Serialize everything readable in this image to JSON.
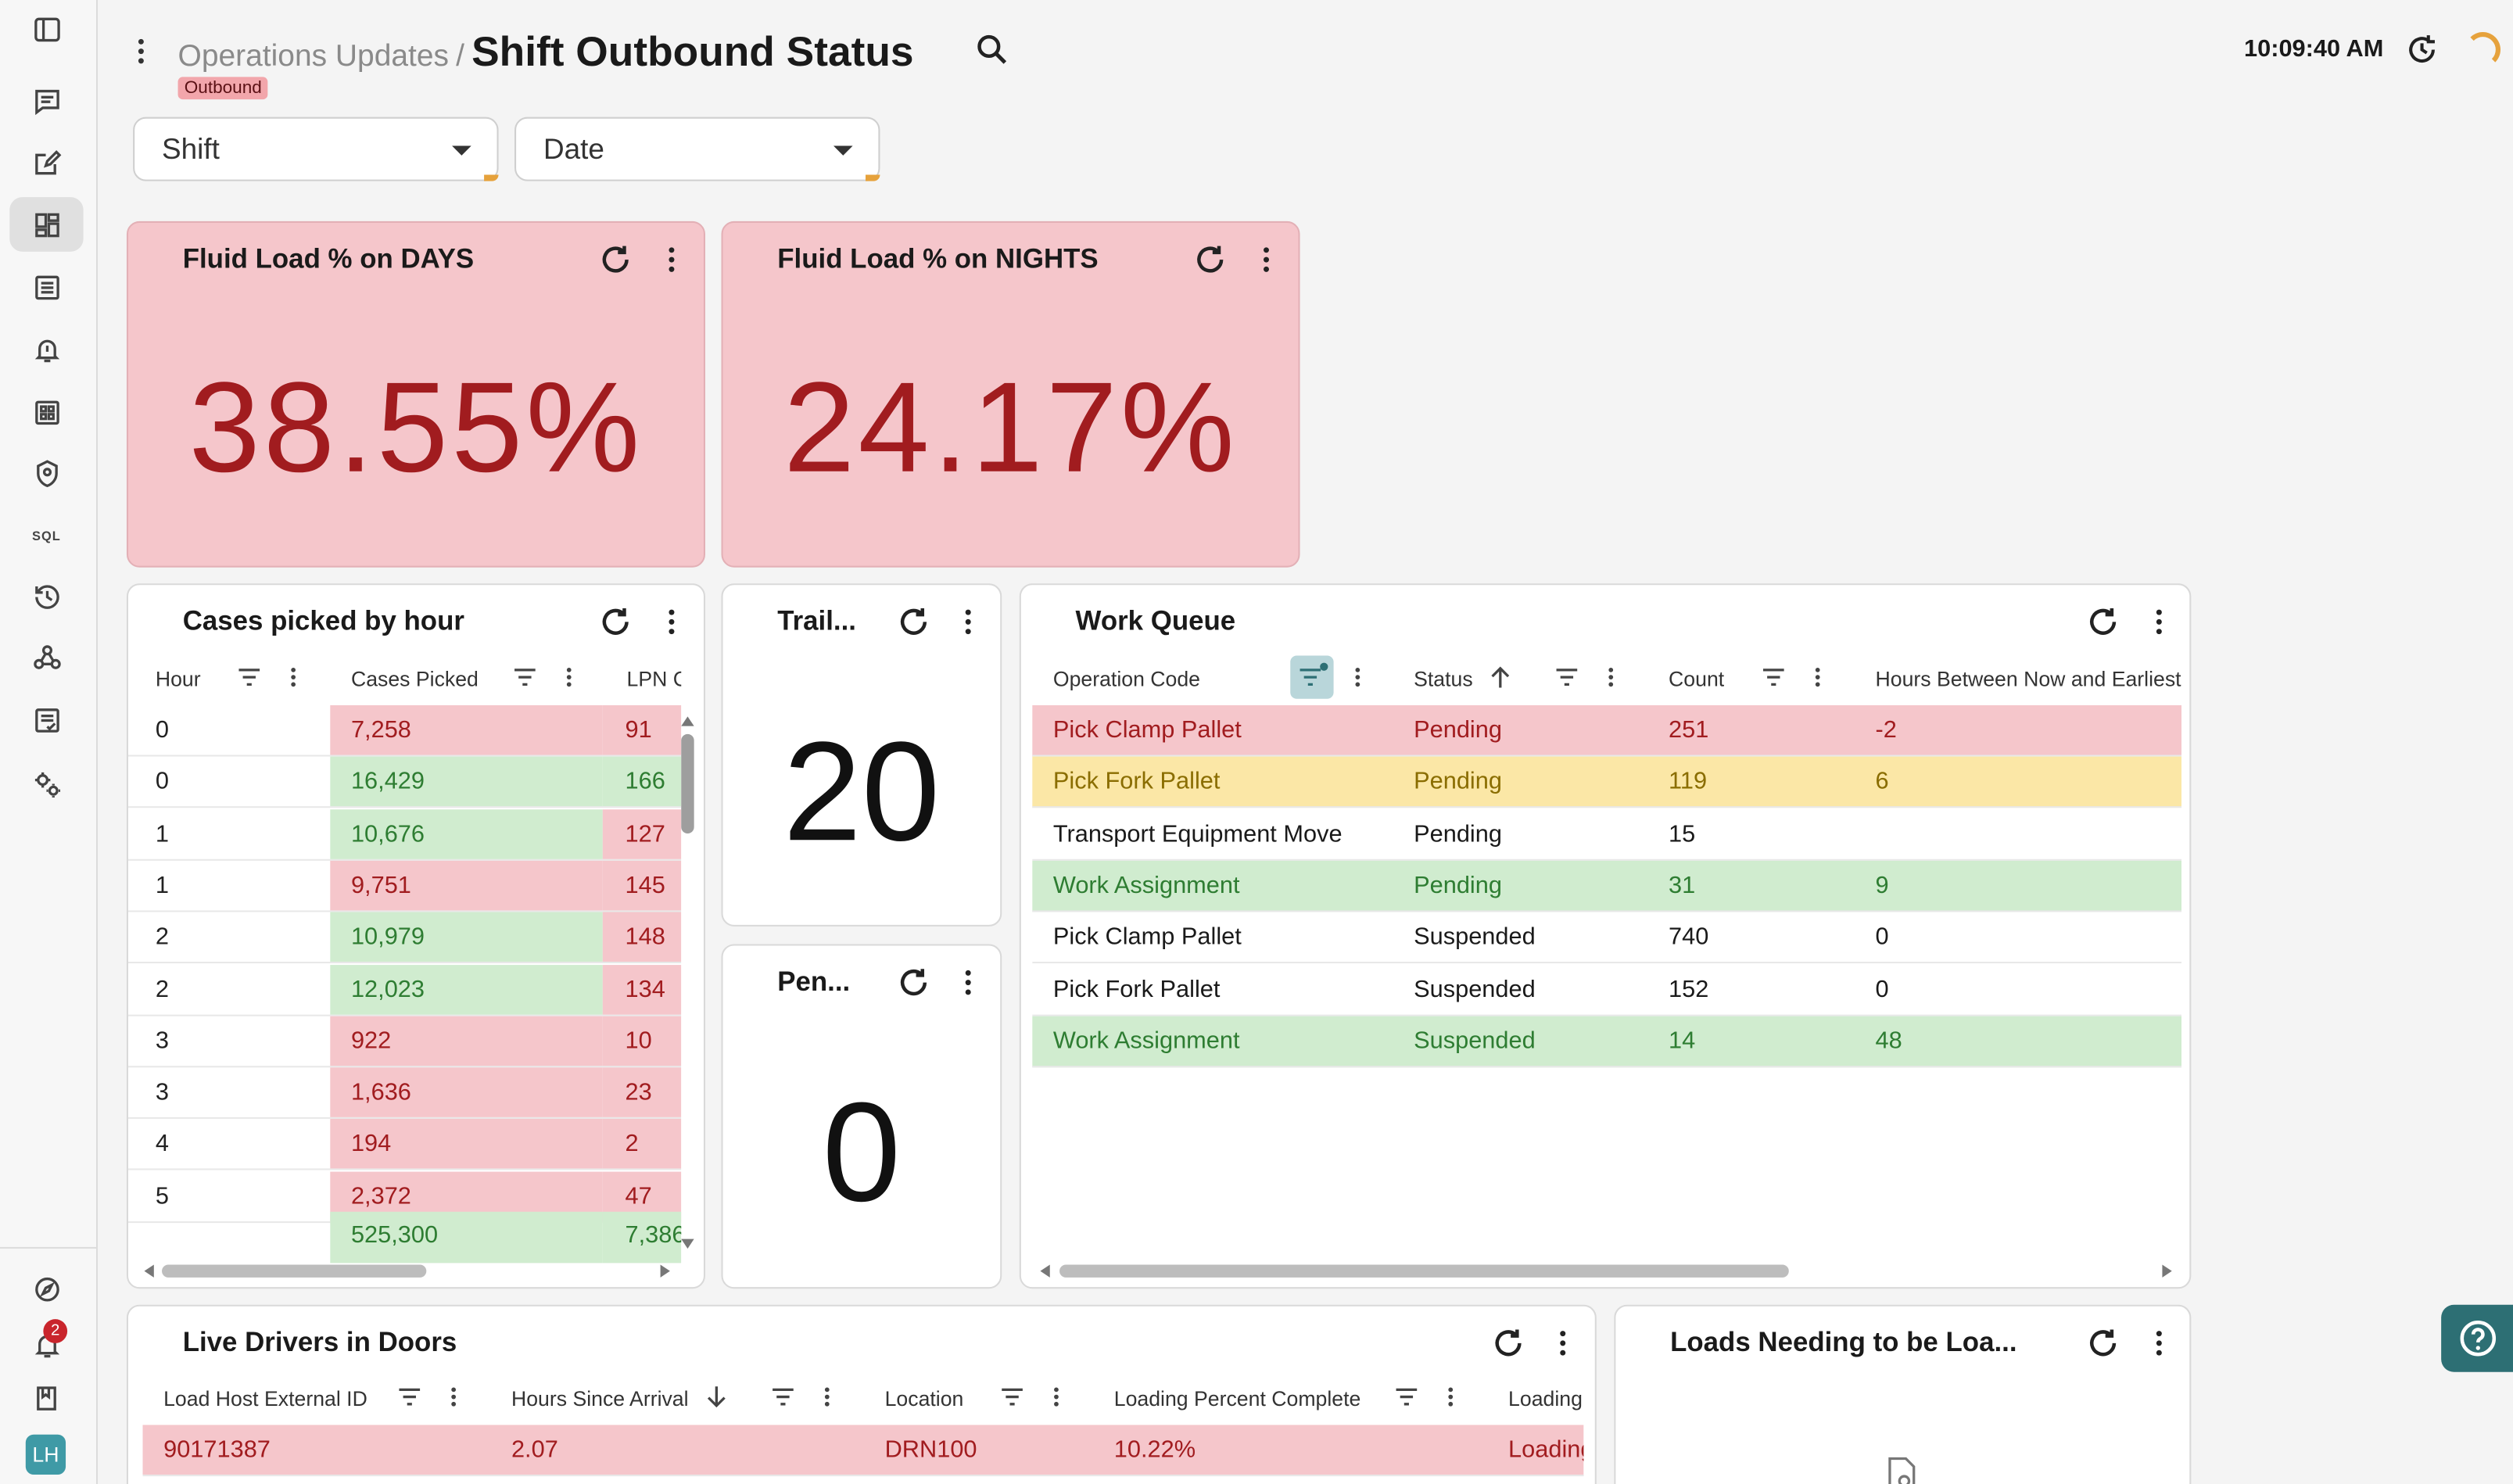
{
  "header": {
    "breadcrumb_parent": "Operations Updates",
    "breadcrumb_sep": "/",
    "title": "Shift Outbound Status",
    "tag": "Outbound",
    "clock": "10:09:40 AM"
  },
  "filters": {
    "shift_label": "Shift",
    "date_label": "Date"
  },
  "fluid_days": {
    "title": "Fluid Load % on DAYS",
    "value": "38.55%"
  },
  "fluid_nights": {
    "title": "Fluid Load % on NIGHTS",
    "value": "24.17%"
  },
  "cases": {
    "title": "Cases picked by hour",
    "headers": [
      "Hour",
      "Cases Picked",
      "LPN Cou"
    ],
    "rows": [
      {
        "hour": "0",
        "cases": "7,258",
        "lpn": "91"
      },
      {
        "hour": "0",
        "cases": "16,429",
        "lpn": "166"
      },
      {
        "hour": "1",
        "cases": "10,676",
        "lpn": "127"
      },
      {
        "hour": "1",
        "cases": "9,751",
        "lpn": "145"
      },
      {
        "hour": "2",
        "cases": "10,979",
        "lpn": "148"
      },
      {
        "hour": "2",
        "cases": "12,023",
        "lpn": "134"
      },
      {
        "hour": "3",
        "cases": "922",
        "lpn": "10"
      },
      {
        "hour": "3",
        "cases": "1,636",
        "lpn": "23"
      },
      {
        "hour": "4",
        "cases": "194",
        "lpn": "2"
      },
      {
        "hour": "5",
        "cases": "2,372",
        "lpn": "47"
      }
    ],
    "totals": {
      "cases": "525,300",
      "lpn": "7,386"
    }
  },
  "trailers": {
    "title": "Trail...",
    "value": "20"
  },
  "pending": {
    "title": "Pen...",
    "value": "0"
  },
  "work_queue": {
    "title": "Work Queue",
    "headers": [
      "Operation Code",
      "Status",
      "Count",
      "Hours Between Now and Earliest S"
    ],
    "rows": [
      {
        "op": "Pick Clamp Pallet",
        "status": "Pending",
        "count": "251",
        "hours": "-2"
      },
      {
        "op": "Pick Fork Pallet",
        "status": "Pending",
        "count": "119",
        "hours": "6"
      },
      {
        "op": "Transport Equipment Move",
        "status": "Pending",
        "count": "15",
        "hours": ""
      },
      {
        "op": "Work Assignment",
        "status": "Pending",
        "count": "31",
        "hours": "9"
      },
      {
        "op": "Pick Clamp Pallet",
        "status": "Suspended",
        "count": "740",
        "hours": "0"
      },
      {
        "op": "Pick Fork Pallet",
        "status": "Suspended",
        "count": "152",
        "hours": "0"
      },
      {
        "op": "Work Assignment",
        "status": "Suspended",
        "count": "14",
        "hours": "48"
      }
    ]
  },
  "live_drivers": {
    "title": "Live Drivers in Doors",
    "headers": [
      "Load Host External ID",
      "Hours Since Arrival",
      "Location",
      "Loading Percent Complete",
      "Loading"
    ],
    "rows": [
      {
        "id": "90171387",
        "hours": "2.07",
        "location": "DRN100",
        "pct": "10.22%",
        "loading": "Loading"
      }
    ]
  },
  "loads_needing": {
    "title": "Loads Needing to be Loa..."
  },
  "rail": {
    "notif_count": "2",
    "sql_label": "SQL",
    "avatar": "LH"
  },
  "colors": {
    "red_bg": "#f5c6cb",
    "red_text": "#a11c1f",
    "green_bg": "#d0eccf",
    "green_text": "#2e7d32",
    "yellow_bg": "#fbe7a6",
    "accent": "#e6a23c",
    "help": "#2d6f74"
  }
}
